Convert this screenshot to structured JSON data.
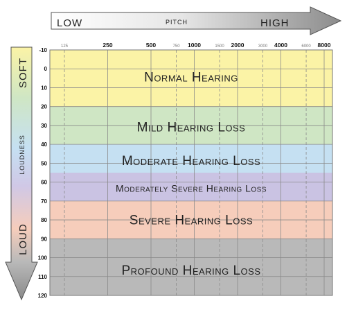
{
  "chart_data": {
    "type": "heatmap",
    "title": "",
    "pitch_axis": {
      "low_label": "LOW",
      "center_label": "PITCH",
      "high_label": "HIGH",
      "ticks": [
        {
          "value": 125,
          "label": "125",
          "major": false
        },
        {
          "value": 250,
          "label": "250",
          "major": true
        },
        {
          "value": 500,
          "label": "500",
          "major": true
        },
        {
          "value": 750,
          "label": "750",
          "major": false
        },
        {
          "value": 1000,
          "label": "1000",
          "major": true
        },
        {
          "value": 1500,
          "label": "1500",
          "major": false
        },
        {
          "value": 2000,
          "label": "2000",
          "major": true
        },
        {
          "value": 3000,
          "label": "3000",
          "major": false
        },
        {
          "value": 4000,
          "label": "4000",
          "major": true
        },
        {
          "value": 6000,
          "label": "6000",
          "major": false
        },
        {
          "value": 8000,
          "label": "8000",
          "major": true
        }
      ]
    },
    "loudness_axis": {
      "soft_label": "SOFT",
      "center_label": "LOUDNESS",
      "loud_label": "LOUD",
      "ylim": [
        -10,
        120
      ],
      "inverted": true,
      "ticks": [
        -10,
        0,
        10,
        20,
        30,
        40,
        50,
        60,
        70,
        80,
        90,
        100,
        110,
        120
      ]
    },
    "bands": [
      {
        "name": "Normal Hearing",
        "from": -10,
        "to": 20,
        "color": "#fbf3a6"
      },
      {
        "name": "Mild Hearing Loss",
        "from": 20,
        "to": 40,
        "color": "#cfe6c4"
      },
      {
        "name": "Moderate Hearing Loss",
        "from": 40,
        "to": 55,
        "color": "#c5e0f2"
      },
      {
        "name": "Moderately Severe Hearing Loss",
        "from": 55,
        "to": 70,
        "color": "#cac3e3"
      },
      {
        "name": "Severe Hearing Loss",
        "from": 70,
        "to": 90,
        "color": "#f6cdbb"
      },
      {
        "name": "Profound Hearing Loss",
        "from": 90,
        "to": 120,
        "color": "#b9b9b9"
      }
    ],
    "grid": true
  }
}
